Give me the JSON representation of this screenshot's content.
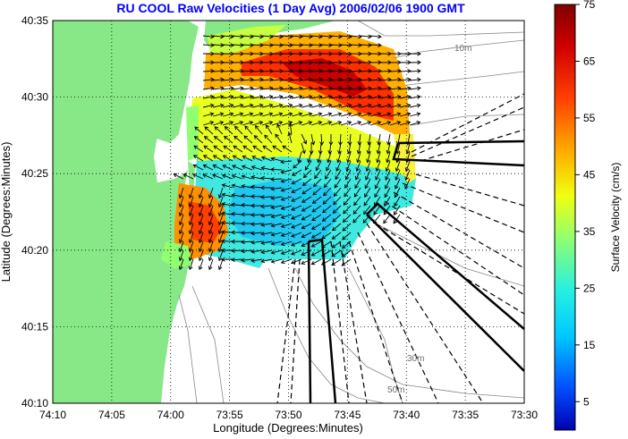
{
  "title": "RU COOL Raw Velocities (1 Day Avg) 2006/02/06 1900 GMT",
  "title_color": "#0000ff",
  "map": {
    "xlabel": "Longitude (Degrees:Minutes)",
    "ylabel": "Latitude (Degrees:Minutes)",
    "x_ticks": [
      "74:10",
      "74:05",
      "74:00",
      "73:55",
      "73:50",
      "73:45",
      "73:40",
      "73:35",
      "73:30"
    ],
    "y_ticks": [
      "40:35",
      "40:30",
      "40:25",
      "40:20",
      "40:15",
      "40:10"
    ],
    "lon_range": [
      "74:10",
      "73:30"
    ],
    "lat_range": [
      "40:10",
      "40:35"
    ],
    "grid": true,
    "land_color": "#88e888",
    "contour_labels": [
      "10m",
      "30m",
      "50m"
    ]
  },
  "colorbar": {
    "label": "Surface Velocity (cm/s)",
    "ticks": [
      75,
      65,
      55,
      45,
      35,
      25,
      15,
      5
    ],
    "range": [
      0,
      75
    ],
    "colormap": "jet"
  }
}
